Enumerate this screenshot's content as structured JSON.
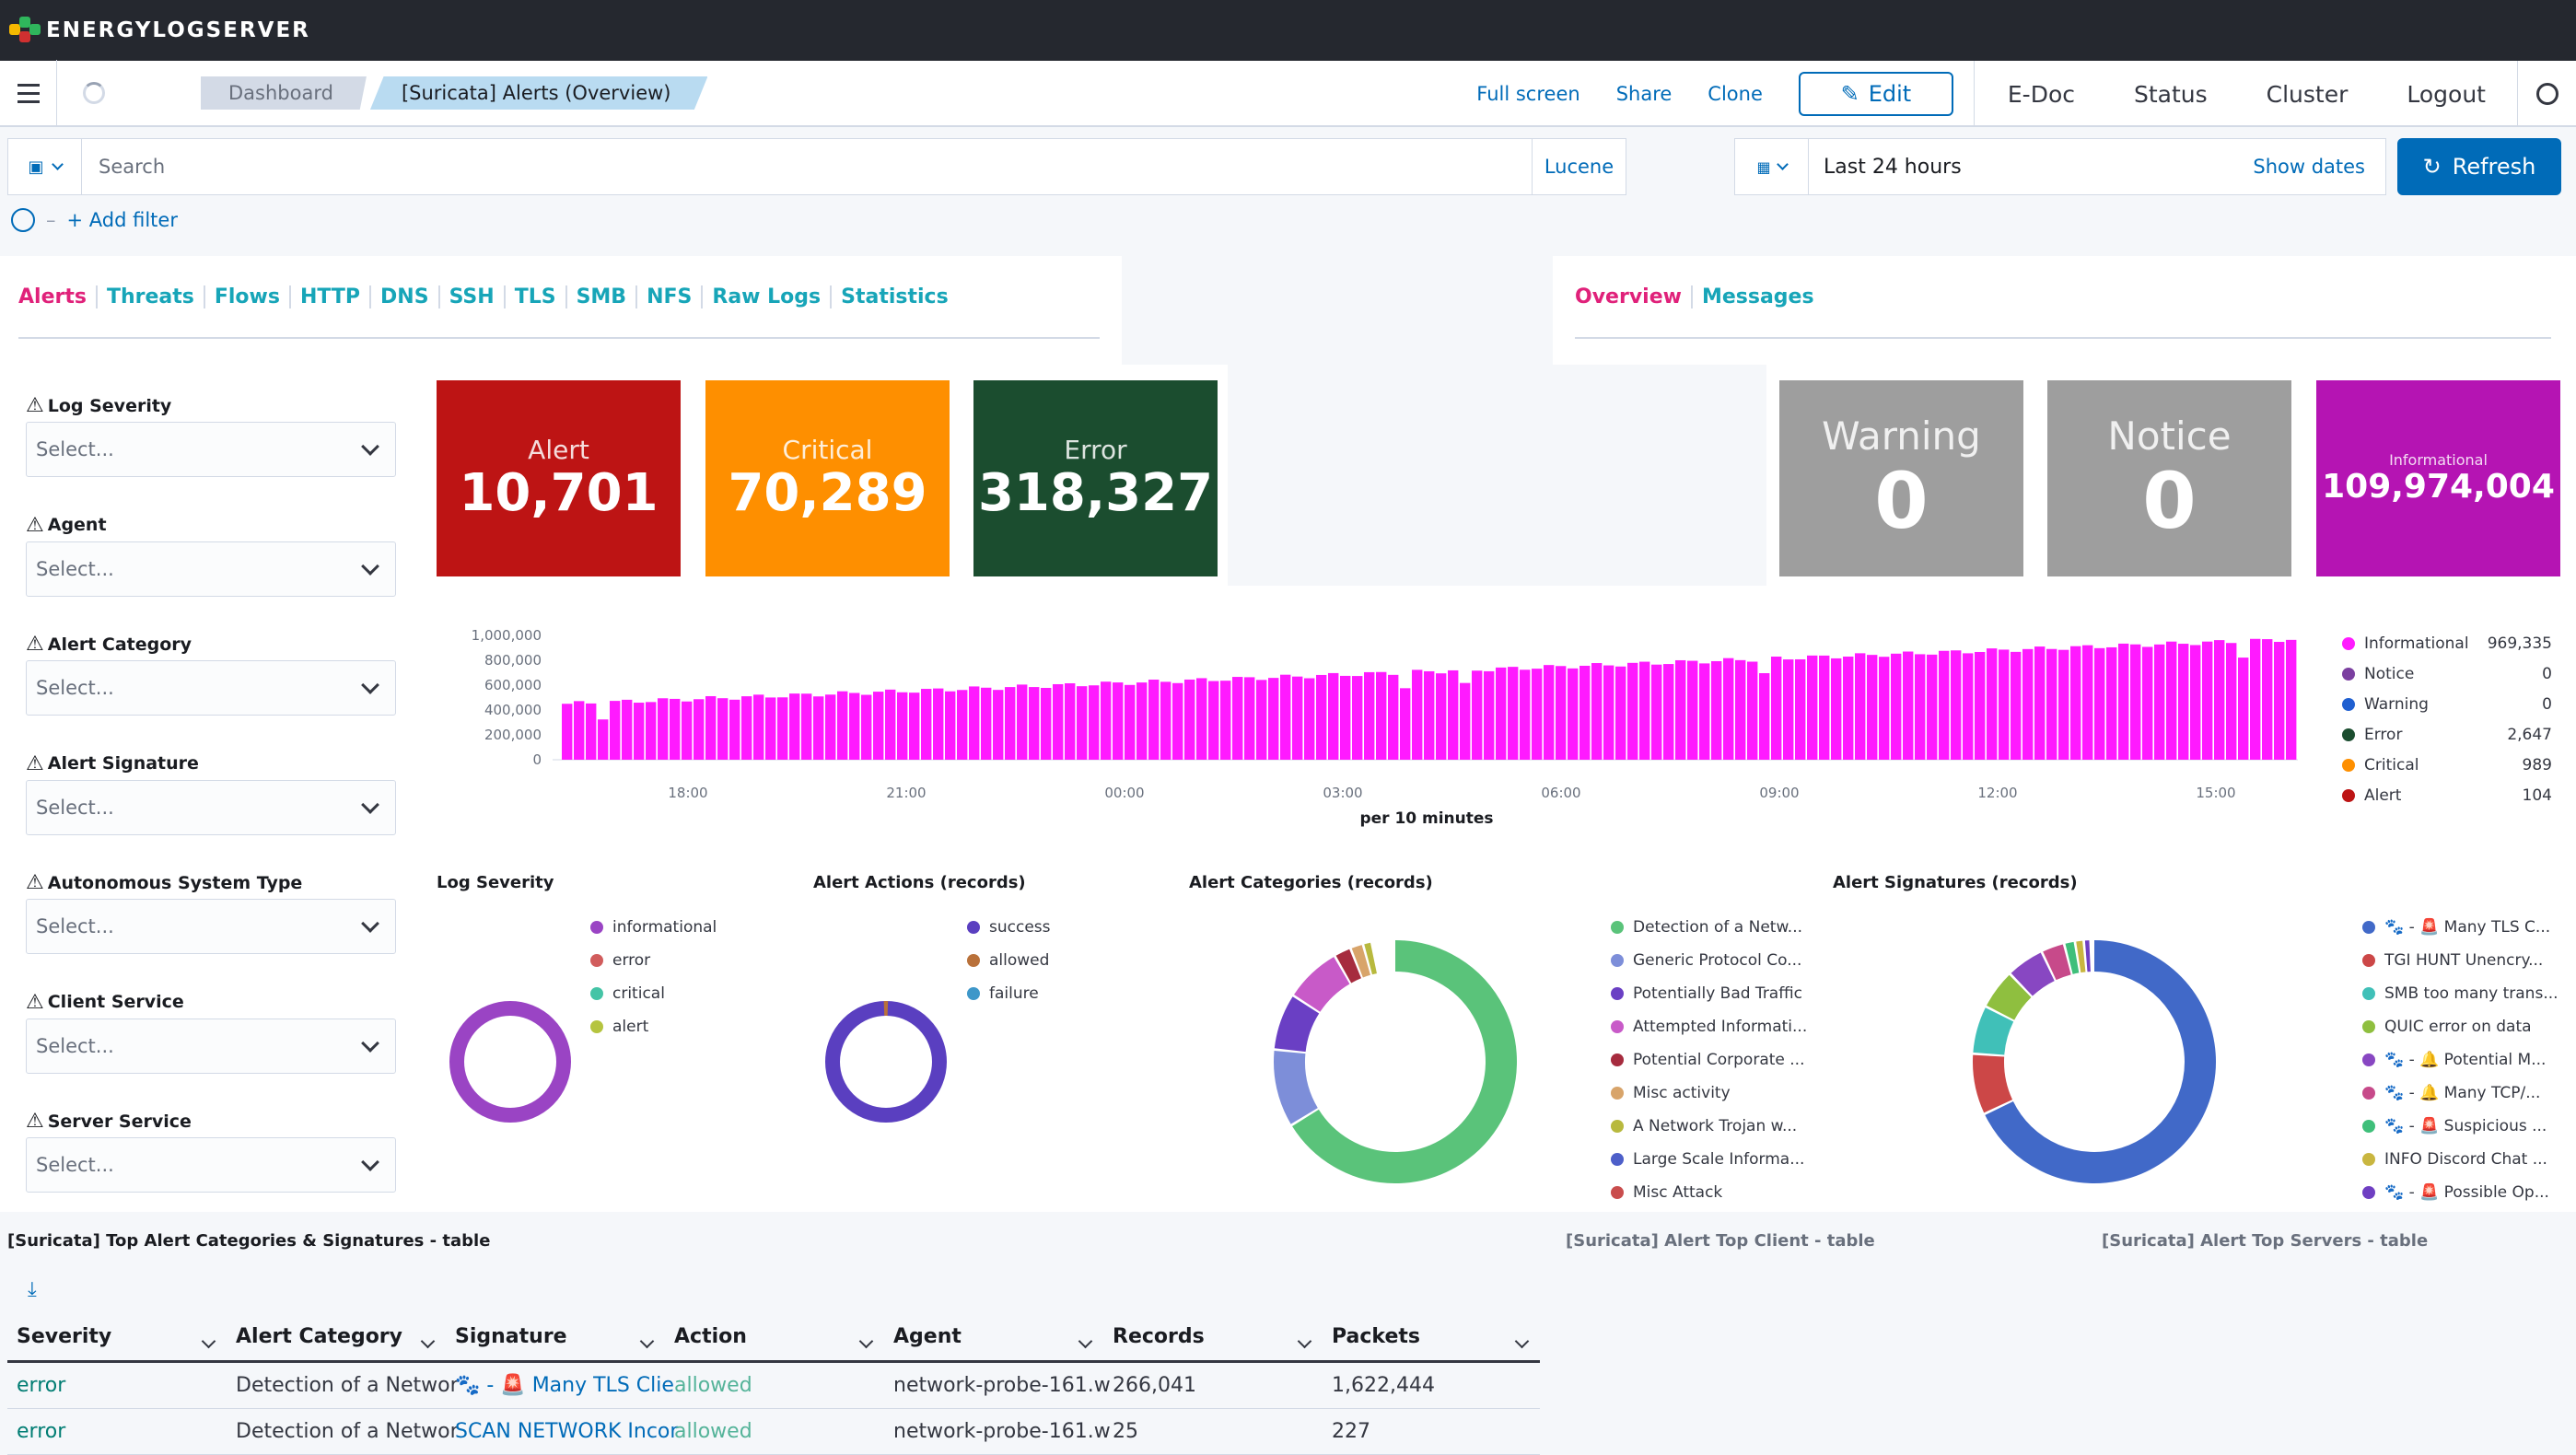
{
  "topbar": {
    "logo_text": "ENERGYLOGSERVER"
  },
  "navbar": {
    "breadcrumbs": [
      "Dashboard",
      "[Suricata] Alerts (Overview)"
    ],
    "links": {
      "full_screen": "Full screen",
      "share": "Share",
      "clone": "Clone",
      "edit": "Edit",
      "edoc": "E-Doc",
      "status": "Status",
      "cluster": "Cluster",
      "logout": "Logout"
    }
  },
  "query": {
    "placeholder": "Search",
    "language": "Lucene",
    "time": "Last 24 hours",
    "show_dates": "Show dates",
    "refresh": "Refresh",
    "add_filter": "+ Add filter"
  },
  "nav_tabs": [
    "Alerts",
    "Threats",
    "Flows",
    "HTTP",
    "DNS",
    "SSH",
    "TLS",
    "SMB",
    "NFS",
    "Raw Logs",
    "Statistics"
  ],
  "view_tabs": [
    "Overview",
    "Messages"
  ],
  "controls": [
    {
      "label": "Log Severity",
      "placeholder": "Select..."
    },
    {
      "label": "Agent",
      "placeholder": "Select..."
    },
    {
      "label": "Alert Category",
      "placeholder": "Select..."
    },
    {
      "label": "Alert Signature",
      "placeholder": "Select..."
    },
    {
      "label": "Autonomous System Type",
      "placeholder": "Select..."
    },
    {
      "label": "Client Service",
      "placeholder": "Select..."
    },
    {
      "label": "Server Service",
      "placeholder": "Select..."
    }
  ],
  "metrics": [
    {
      "label": "Alert",
      "value": "10,701",
      "color": "#bd1414"
    },
    {
      "label": "Critical",
      "value": "70,289",
      "color": "#fe8f00"
    },
    {
      "label": "Error",
      "value": "318,327",
      "color": "#1b4d2f"
    },
    {
      "label": "Warning",
      "value": "0",
      "color": "#9e9e9e"
    },
    {
      "label": "Notice",
      "value": "0",
      "color": "#9e9e9e"
    },
    {
      "label": "Informational",
      "value": "109,974,004",
      "color": "#b514b3"
    }
  ],
  "histogram": {
    "y_ticks": [
      "1,000,000",
      "800,000",
      "600,000",
      "400,000",
      "200,000",
      "0"
    ],
    "x_ticks": [
      "18:00",
      "21:00",
      "00:00",
      "03:00",
      "06:00",
      "09:00",
      "12:00",
      "15:00"
    ],
    "xlabel": "per 10 minutes",
    "legend": [
      {
        "name": "Informational",
        "value": "969,335",
        "color": "#ff1aff"
      },
      {
        "name": "Notice",
        "value": "0",
        "color": "#7b3fa0"
      },
      {
        "name": "Warning",
        "value": "0",
        "color": "#1f5fd0"
      },
      {
        "name": "Error",
        "value": "2,647",
        "color": "#1b4d2f"
      },
      {
        "name": "Critical",
        "value": "989",
        "color": "#fe8f00"
      },
      {
        "name": "Alert",
        "value": "104",
        "color": "#bd1414"
      }
    ]
  },
  "pies": {
    "log_severity": {
      "title": "Log Severity",
      "legend": [
        {
          "name": "informational",
          "color": "#9a44c4"
        },
        {
          "name": "error",
          "color": "#d15c5c"
        },
        {
          "name": "critical",
          "color": "#44c4a6"
        },
        {
          "name": "alert",
          "color": "#b5c43f"
        }
      ]
    },
    "alert_actions": {
      "title": "Alert Actions (records)",
      "legend": [
        {
          "name": "success",
          "color": "#5a3fc0"
        },
        {
          "name": "allowed",
          "color": "#b9713a"
        },
        {
          "name": "failure",
          "color": "#3e97c9"
        }
      ]
    },
    "alert_categories": {
      "title": "Alert Categories (records)",
      "legend": [
        {
          "name": "Detection of a Netw...",
          "color": "#5ac37a"
        },
        {
          "name": "Generic Protocol Co...",
          "color": "#7d8ed9"
        },
        {
          "name": "Potentially Bad Traffic",
          "color": "#6a3fc4"
        },
        {
          "name": "Attempted Informati...",
          "color": "#c85ac8"
        },
        {
          "name": "Potential Corporate ...",
          "color": "#a62b3e"
        },
        {
          "name": "Misc activity",
          "color": "#d8a46a"
        },
        {
          "name": "A Network Trojan w...",
          "color": "#b8b93e"
        },
        {
          "name": "Large Scale Informa...",
          "color": "#4d5fc9"
        },
        {
          "name": "Misc Attack",
          "color": "#c94d4d"
        }
      ]
    },
    "alert_signatures": {
      "title": "Alert Signatures (records)",
      "legend": [
        {
          "name": "🐾 - 🚨 Many TLS C...",
          "color": "#4169c8"
        },
        {
          "name": "TGI HUNT Unencry...",
          "color": "#cc4747"
        },
        {
          "name": "SMB too many trans...",
          "color": "#40c0b8"
        },
        {
          "name": "QUIC error on data",
          "color": "#8fbf3f"
        },
        {
          "name": "🐾 - 🔔 Potential M...",
          "color": "#8847c2"
        },
        {
          "name": "🐾 - 🔔 Many TCP/...",
          "color": "#c74a8a"
        },
        {
          "name": "🐾 - 🚨 Suspicious ...",
          "color": "#3fbf7a"
        },
        {
          "name": "INFO Discord Chat ...",
          "color": "#c9b640"
        },
        {
          "name": "🐾 - 🚨 Possible Op...",
          "color": "#6f3fc2"
        }
      ]
    }
  },
  "table_titles": {
    "main": "[Suricata] Top Alert Categories & Signatures - table",
    "client": "[Suricata] Alert Top Client - table",
    "servers": "[Suricata] Alert Top Servers - table"
  },
  "table": {
    "headers": [
      "Severity",
      "Alert Category",
      "Signature",
      "Action",
      "Agent",
      "Records",
      "Packets"
    ],
    "rows": [
      [
        "error",
        "Detection of a Networ",
        "🐾 - 🚨 Many TLS Clie",
        "allowed",
        "network-probe-161.w",
        "266,041",
        "1,622,444"
      ],
      [
        "error",
        "Detection of a Networ",
        "SCAN NETWORK Incor",
        "allowed",
        "network-probe-161.w",
        "25",
        "227"
      ]
    ]
  }
}
